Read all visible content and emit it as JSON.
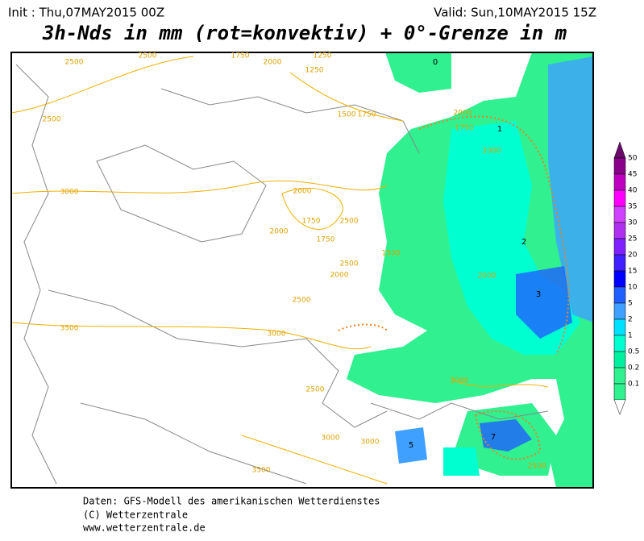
{
  "header": {
    "init": "Init : Thu,07MAY2015 00Z",
    "valid": "Valid: Sun,10MAY2015 15Z",
    "title": "3h-Nds in mm (rot=konvektiv) + 0°-Grenze in m"
  },
  "legend": {
    "labels": [
      "50",
      "45",
      "40",
      "35",
      "30",
      "25",
      "20",
      "15",
      "10",
      "5",
      "2",
      "1",
      "0.5",
      "0.2",
      "0.1"
    ],
    "colors": [
      "#6a0a6a",
      "#8b008b",
      "#c000c0",
      "#ff00ff",
      "#d040ff",
      "#b030f0",
      "#8020ff",
      "#4020ff",
      "#0000ff",
      "#2060ff",
      "#40a0ff",
      "#00e0ff",
      "#00ffd0",
      "#00f0a0",
      "#30f090"
    ]
  },
  "contour_labels": [
    "2500",
    "2500",
    "1750",
    "2000",
    "1250",
    "1250",
    "2500",
    "1500",
    "1750",
    "3000",
    "2000",
    "1750",
    "2500",
    "2000",
    "1750",
    "2500",
    "2000",
    "2500",
    "3000",
    "3500",
    "2000",
    "1750",
    "2000",
    "1500",
    "2000",
    "2000",
    "2500",
    "3000",
    "3000",
    "3500",
    "2500"
  ],
  "precip_labels": [
    "0",
    "1",
    "2",
    "3",
    "5",
    "7"
  ],
  "footer": [
    "Daten: GFS-Modell des amerikanischen Wetterdienstes",
    "(C) Wetterzentrale",
    "www.wetterzentrale.de"
  ]
}
